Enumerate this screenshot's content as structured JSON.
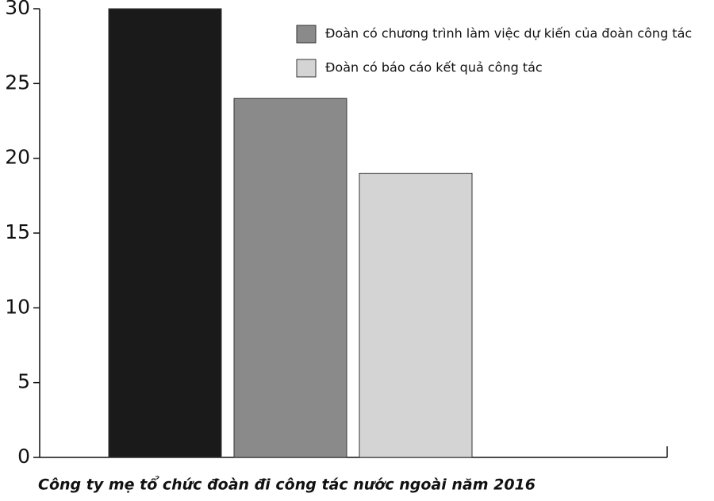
{
  "chart_data": {
    "type": "bar",
    "categories": [
      "Công ty mẹ tổ chức đoàn đi công tác nước ngoài năm 2016"
    ],
    "series": [
      {
        "color": "#1b1a1a",
        "values": [
          30
        ]
      },
      {
        "name": "Đoàn có chương trình làm việc dự kiến của đoàn công tác",
        "color": "#8a8a8a",
        "values": [
          24
        ]
      },
      {
        "name": "Đoàn có báo cáo kết quả công tác",
        "color": "#d5d4d5",
        "values": [
          19
        ]
      }
    ],
    "ylim": [
      0,
      30
    ],
    "yticks": [
      0,
      5,
      10,
      15,
      20,
      25,
      30
    ],
    "legend": "top-right"
  }
}
